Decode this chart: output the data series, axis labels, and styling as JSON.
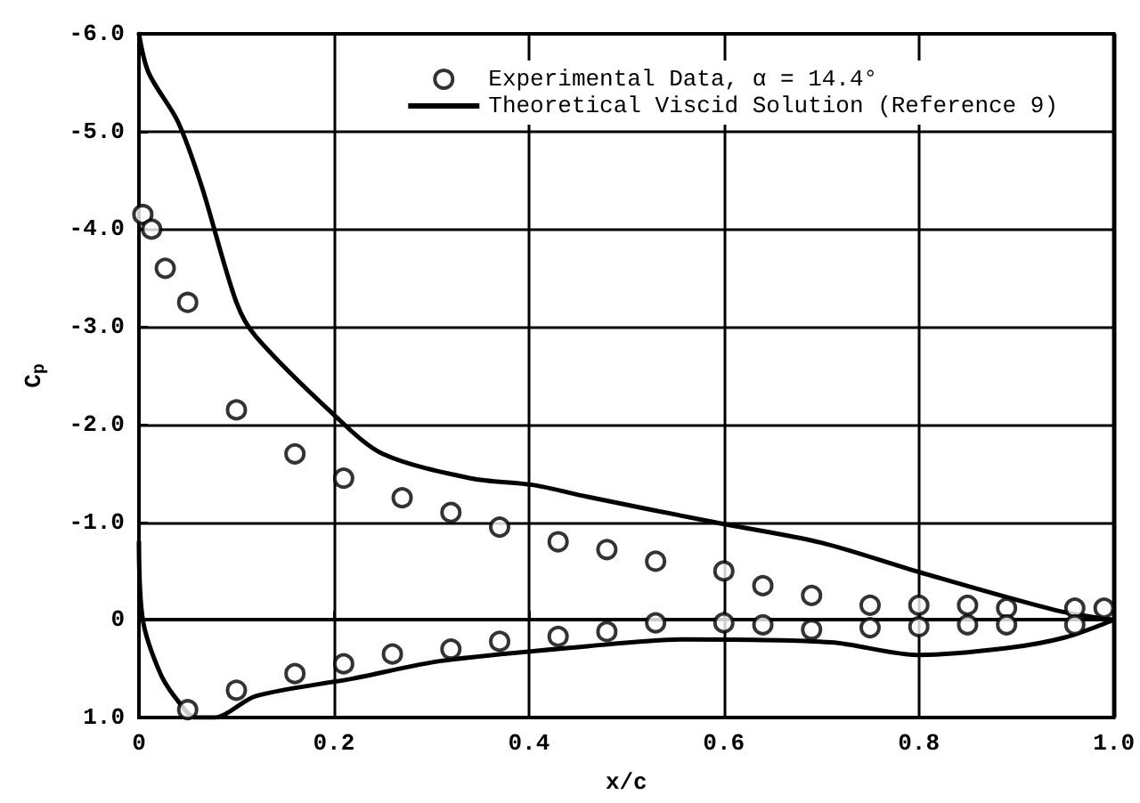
{
  "chart_data": {
    "type": "scatter",
    "xlabel": "x/c",
    "ylabel": "C$_{p}$",
    "xlim": [
      0,
      1
    ],
    "xticks": [
      0,
      0.2,
      0.4,
      0.6,
      0.8,
      {
        "value": 1,
        "label": "1.0"
      }
    ],
    "ylim": [
      1,
      -6
    ],
    "yticks": [
      {
        "value": 1,
        "label": "1.0"
      },
      0,
      {
        "value": -1,
        "label": "-1.0"
      },
      {
        "value": -2,
        "label": "-2.0"
      },
      {
        "value": -3,
        "label": "-3.0"
      },
      {
        "value": -4,
        "label": "-4.0"
      },
      {
        "value": -5,
        "label": "-5.0"
      },
      {
        "value": -6,
        "label": "-6.0"
      }
    ],
    "grid": true,
    "legend": "top right",
    "series": [
      {
        "name": "Experimental Data, α = 14.4°",
        "marker": "circle",
        "color": "#000000",
        "x": [
          0.004,
          0.013,
          0.027,
          0.05,
          0.1,
          0.16,
          0.21,
          0.27,
          0.32,
          0.37,
          0.43,
          0.48,
          0.53,
          0.6,
          0.64,
          0.69,
          0.75,
          0.8,
          0.85,
          0.89,
          0.96,
          0.99,
          0.05,
          0.1,
          0.16,
          0.21,
          0.26,
          0.32,
          0.37,
          0.43,
          0.48,
          0.53,
          0.6,
          0.64,
          0.69,
          0.75,
          0.8,
          0.85,
          0.89,
          0.96
        ],
        "values": [
          -4.15,
          -4.0,
          -3.6,
          -3.25,
          -2.15,
          -1.7,
          -1.45,
          -1.25,
          -1.1,
          -0.95,
          -0.8,
          -0.72,
          -0.6,
          -0.5,
          -0.35,
          -0.25,
          -0.15,
          -0.15,
          -0.15,
          -0.12,
          -0.12,
          -0.12,
          0.92,
          0.72,
          0.55,
          0.45,
          0.35,
          0.3,
          0.22,
          0.17,
          0.12,
          0.03,
          0.03,
          0.05,
          0.1,
          0.08,
          0.07,
          0.05,
          0.05,
          0.05
        ]
      },
      {
        "name": "Theoretical Viscid Solution (Reference 9)",
        "type": "line",
        "color": "#000000",
        "x": [
          0,
          0.01,
          0.04,
          0.064,
          0.1,
          0.12,
          0.2,
          0.25,
          0.34,
          0.405,
          0.46,
          0.59,
          0.7,
          0.8,
          0.94,
          1.0
        ],
        "values": [
          -6.0,
          -5.6,
          -5.1,
          -4.45,
          -3.25,
          -2.9,
          -2.1,
          -1.7,
          -1.45,
          -1.38,
          -1.26,
          -1.0,
          -0.79,
          -0.49,
          -0.1,
          0
        ]
      },
      {
        "type": "line",
        "color": "#000000",
        "x": [
          0,
          0.004,
          0.022,
          0.04,
          0.058,
          0.077,
          0.12,
          0.22,
          0.31,
          0.46,
          0.56,
          0.71,
          0.8,
          0.89,
          0.95,
          1.0
        ],
        "values": [
          -0.8,
          0,
          0.55,
          0.83,
          1.0,
          1.0,
          0.78,
          0.6,
          0.42,
          0.27,
          0.2,
          0.23,
          0.36,
          0.29,
          0.18,
          0
        ]
      }
    ]
  }
}
